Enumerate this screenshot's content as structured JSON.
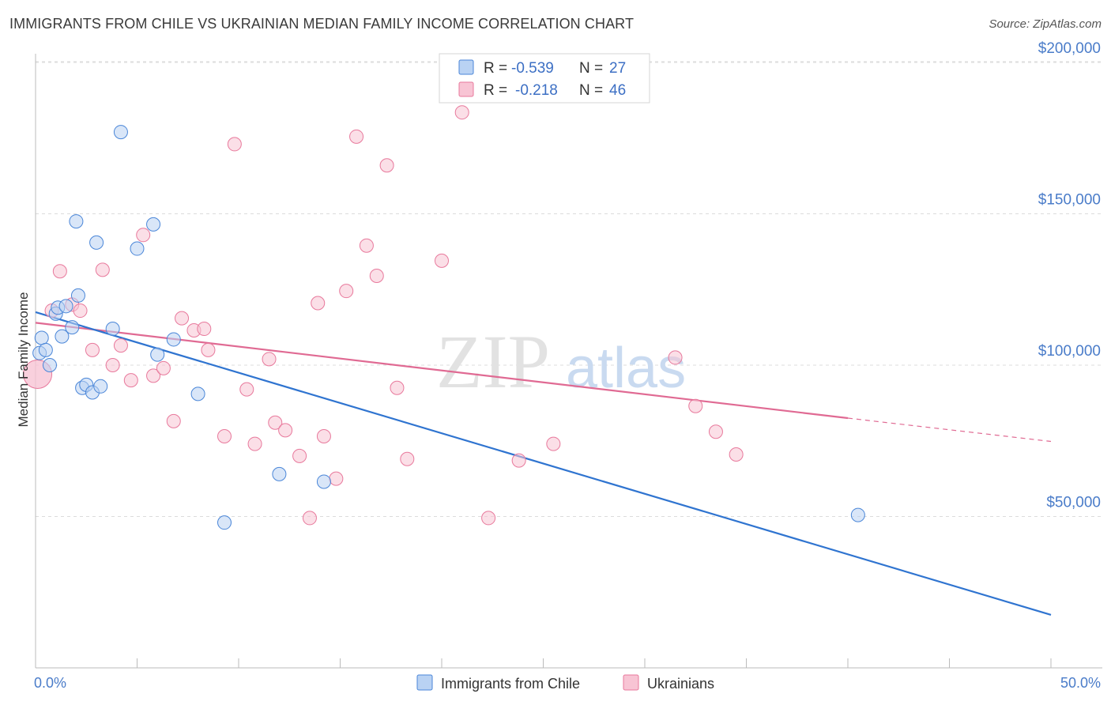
{
  "title": "IMMIGRANTS FROM CHILE VS UKRAINIAN MEDIAN FAMILY INCOME CORRELATION CHART",
  "source": "Source: ZipAtlas.com",
  "watermark": {
    "zip": "ZIP",
    "atlas": "atlas"
  },
  "colors": {
    "blue": "#4a86d8",
    "blue_fill": "#b9d2f3",
    "blue_line": "#2f74d0",
    "pink": "#e8799c",
    "pink_fill": "#f8c4d4",
    "pink_line": "#e06a93",
    "tick_label": "#4a7cc9"
  },
  "stats_legend": {
    "rows": [
      {
        "r_label": "R =",
        "r_value": "-0.539",
        "n_label": "N =",
        "n_value": "27"
      },
      {
        "r_label": "R =",
        "r_value": "-0.218",
        "n_label": "N =",
        "n_value": "46"
      }
    ]
  },
  "chart_data": {
    "type": "scatter",
    "title": "IMMIGRANTS FROM CHILE VS UKRAINIAN MEDIAN FAMILY INCOME CORRELATION CHART",
    "xlabel": "",
    "ylabel": "Median Family Income",
    "xlim": [
      0,
      50
    ],
    "ylim": [
      0,
      205000
    ],
    "x_tick_labels": [
      "0.0%",
      "50.0%"
    ],
    "y_ticks": [
      50000,
      100000,
      150000,
      200000
    ],
    "y_tick_labels": [
      "$50,000",
      "$100,000",
      "$150,000",
      "$200,000"
    ],
    "grid": true,
    "legend_position": "bottom",
    "series": [
      {
        "name": "Immigrants from Chile",
        "color": "blue",
        "r": -0.539,
        "n": 27,
        "trend": {
          "x": [
            0,
            50
          ],
          "y": [
            117500,
            17500
          ]
        },
        "points": [
          [
            0.2,
            104000
          ],
          [
            0.3,
            109000
          ],
          [
            0.5,
            105000
          ],
          [
            0.7,
            100000
          ],
          [
            1.0,
            117000
          ],
          [
            1.1,
            119000
          ],
          [
            1.3,
            109500
          ],
          [
            1.5,
            119500
          ],
          [
            1.8,
            112500
          ],
          [
            2.0,
            147500
          ],
          [
            2.1,
            123000
          ],
          [
            2.3,
            92500
          ],
          [
            2.5,
            93500
          ],
          [
            2.8,
            91000
          ],
          [
            3.0,
            140500
          ],
          [
            3.2,
            93000
          ],
          [
            3.8,
            112000
          ],
          [
            4.2,
            177000
          ],
          [
            5.0,
            138500
          ],
          [
            5.8,
            146500
          ],
          [
            6.0,
            103500
          ],
          [
            6.8,
            108500
          ],
          [
            8.0,
            90500
          ],
          [
            9.3,
            48000
          ],
          [
            12.0,
            64000
          ],
          [
            14.2,
            61500
          ],
          [
            40.5,
            50500
          ]
        ]
      },
      {
        "name": "Ukrainians",
        "color": "pink",
        "r": -0.218,
        "n": 46,
        "trend": {
          "x": [
            0,
            40
          ],
          "y": [
            114000,
            82500
          ]
        },
        "trend_extension": {
          "x": [
            40,
            50
          ],
          "y": [
            82500,
            74800
          ]
        },
        "points": [
          [
            0.1,
            97000
          ],
          [
            0.8,
            118000
          ],
          [
            1.2,
            131000
          ],
          [
            1.8,
            120000
          ],
          [
            2.2,
            118000
          ],
          [
            2.8,
            105000
          ],
          [
            3.3,
            131500
          ],
          [
            3.8,
            100000
          ],
          [
            4.2,
            106500
          ],
          [
            4.7,
            95000
          ],
          [
            5.3,
            143000
          ],
          [
            5.8,
            96500
          ],
          [
            6.3,
            99000
          ],
          [
            6.8,
            81500
          ],
          [
            7.2,
            115500
          ],
          [
            7.8,
            111500
          ],
          [
            8.3,
            112000
          ],
          [
            8.5,
            105000
          ],
          [
            9.3,
            76500
          ],
          [
            9.8,
            173000
          ],
          [
            10.4,
            92000
          ],
          [
            10.8,
            74000
          ],
          [
            11.5,
            102000
          ],
          [
            11.8,
            81000
          ],
          [
            12.3,
            78500
          ],
          [
            13.0,
            70000
          ],
          [
            13.5,
            49500
          ],
          [
            13.9,
            120500
          ],
          [
            14.2,
            76500
          ],
          [
            14.8,
            62500
          ],
          [
            15.3,
            124500
          ],
          [
            15.8,
            175500
          ],
          [
            16.3,
            139500
          ],
          [
            16.8,
            129500
          ],
          [
            17.3,
            166000
          ],
          [
            17.8,
            92500
          ],
          [
            18.3,
            69000
          ],
          [
            20.0,
            134500
          ],
          [
            21.0,
            183500
          ],
          [
            22.3,
            49500
          ],
          [
            23.8,
            68500
          ],
          [
            25.5,
            74000
          ],
          [
            31.5,
            102500
          ],
          [
            32.5,
            86500
          ],
          [
            33.5,
            78000
          ],
          [
            34.5,
            70500
          ]
        ]
      }
    ]
  }
}
